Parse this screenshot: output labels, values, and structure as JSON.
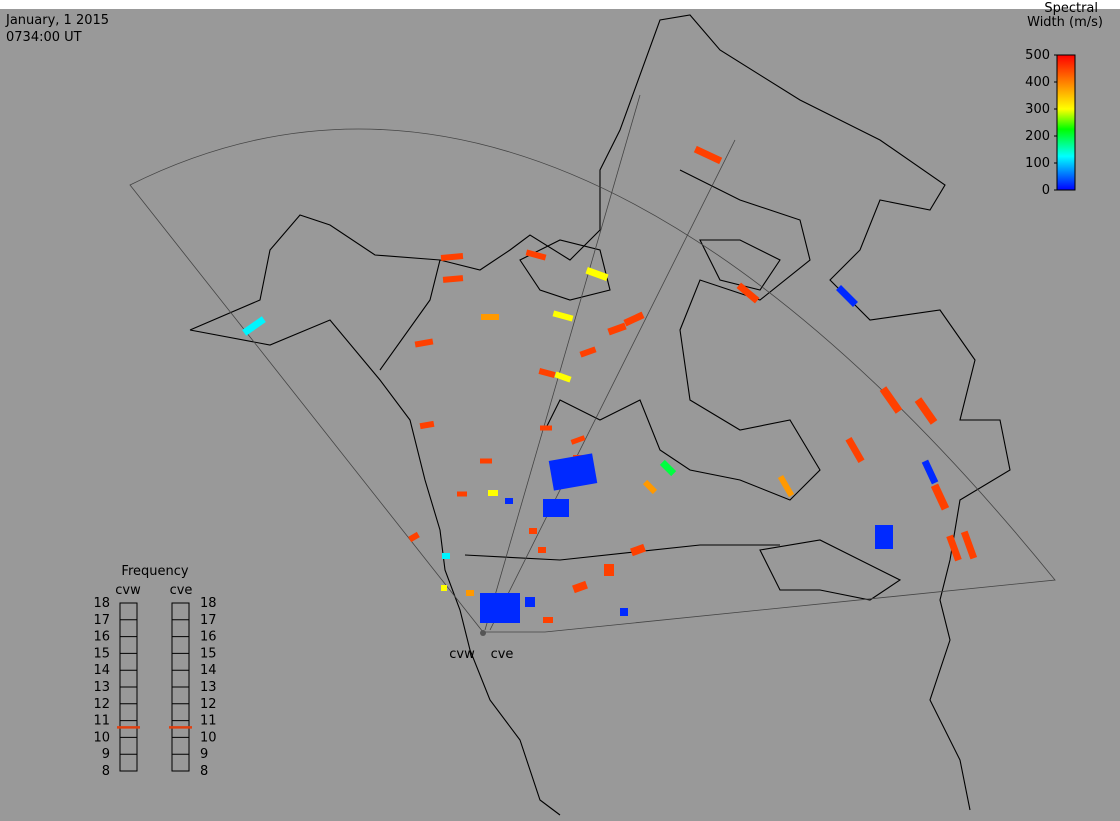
{
  "header": {
    "date": "January, 1 2015",
    "time": "0734:00 UT"
  },
  "colorbar": {
    "title_line1": "Spectral",
    "title_line2": "Width (m/s)",
    "lim": [
      0,
      500
    ],
    "ticks": [
      0,
      100,
      200,
      300,
      400,
      500
    ]
  },
  "frequency": {
    "title": "Frequency",
    "lim": [
      8,
      18
    ],
    "ticks": [
      8,
      9,
      10,
      11,
      12,
      13,
      14,
      15,
      16,
      17,
      18
    ],
    "radars": [
      {
        "name": "cvw",
        "value": 10.6
      },
      {
        "name": "cve",
        "value": 10.6
      }
    ]
  },
  "stations": [
    "cvw",
    "cve"
  ],
  "echoes": {
    "widths": [
      450,
      450,
      450,
      450,
      300,
      380,
      300,
      450,
      450,
      450,
      450,
      450,
      300,
      120,
      450,
      20,
      450,
      450,
      450,
      380,
      200,
      380,
      450,
      450,
      450,
      300,
      20,
      450,
      450,
      450,
      20,
      20,
      450,
      20,
      20,
      450,
      450,
      450,
      450,
      120,
      450,
      450,
      20,
      20,
      20,
      450,
      450,
      450,
      300,
      380
    ]
  }
}
